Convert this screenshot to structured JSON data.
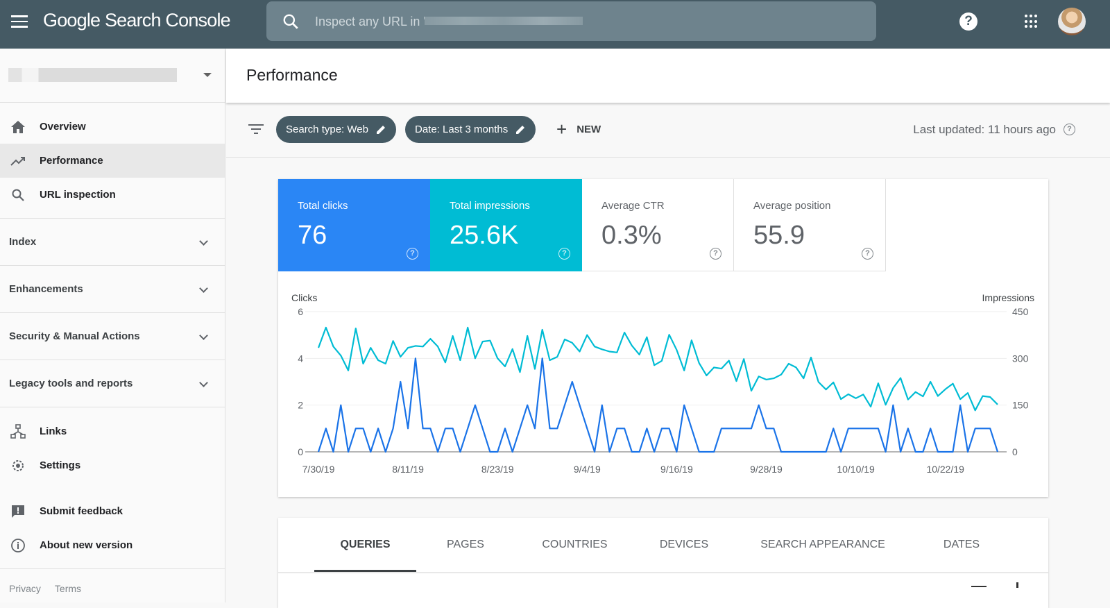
{
  "app": {
    "title": "Google Search Console",
    "search_placeholder": "Inspect any URL in '"
  },
  "icons": {
    "menu": "hamburger-icon",
    "search": "search-icon",
    "help": "help-circle-icon",
    "apps": "apps-grid-icon",
    "avatar": "user-avatar"
  },
  "header": {
    "title": "Performance"
  },
  "sidebar": {
    "items": [
      {
        "label": "Overview",
        "icon": "home-icon"
      },
      {
        "label": "Performance",
        "icon": "trending-up-icon",
        "active": true
      },
      {
        "label": "URL inspection",
        "icon": "search-icon"
      }
    ],
    "sections": [
      {
        "label": "Index"
      },
      {
        "label": "Enhancements"
      },
      {
        "label": "Security & Manual Actions"
      },
      {
        "label": "Legacy tools and reports"
      }
    ],
    "bottom": [
      {
        "label": "Links",
        "icon": "sitemap-icon"
      },
      {
        "label": "Settings",
        "icon": "gear-icon"
      },
      {
        "label": "Submit feedback",
        "icon": "feedback-icon"
      },
      {
        "label": "About new version",
        "icon": "info-icon"
      }
    ],
    "footer": {
      "privacy": "Privacy",
      "terms": "Terms"
    }
  },
  "filters": {
    "search_type": "Search type: Web",
    "date": "Date: Last 3 months",
    "new": "NEW",
    "last_updated": "Last updated: 11 hours ago"
  },
  "metrics": [
    {
      "label": "Total clicks",
      "value": "76",
      "color": "#2a86f5",
      "selected": true
    },
    {
      "label": "Total impressions",
      "value": "25.6K",
      "color": "#00bcd4",
      "selected": true
    },
    {
      "label": "Average CTR",
      "value": "0.3%",
      "selected": false
    },
    {
      "label": "Average position",
      "value": "55.9",
      "selected": false
    }
  ],
  "tabs": [
    {
      "label": "QUERIES",
      "active": true
    },
    {
      "label": "PAGES"
    },
    {
      "label": "COUNTRIES"
    },
    {
      "label": "DEVICES"
    },
    {
      "label": "SEARCH APPEARANCE"
    },
    {
      "label": "DATES"
    }
  ],
  "chart_data": {
    "type": "line",
    "start_date": "7/30/19",
    "x_ticks": [
      "7/30/19",
      "8/11/19",
      "8/23/19",
      "9/4/19",
      "9/16/19",
      "9/28/19",
      "10/10/19",
      "10/22/19"
    ],
    "y_left": {
      "label": "Clicks",
      "ticks": [
        0,
        2,
        4,
        6
      ],
      "range": [
        0,
        6
      ]
    },
    "y_right": {
      "label": "Impressions",
      "ticks": [
        0,
        150,
        300,
        450
      ],
      "range": [
        0,
        450
      ]
    },
    "grid": true,
    "series": [
      {
        "name": "Clicks",
        "axis": "left",
        "color": "#1a73e8",
        "values": [
          0,
          1,
          0,
          2,
          0,
          1,
          1,
          0,
          1,
          0,
          1,
          3,
          1,
          4,
          1,
          1,
          0,
          1,
          1,
          0,
          1,
          2,
          1,
          0,
          0,
          1,
          0,
          1,
          2,
          1,
          4,
          1,
          1,
          2,
          3,
          2,
          1,
          0,
          2,
          0,
          1,
          1,
          0,
          0,
          1,
          0,
          1,
          1,
          0,
          2,
          1,
          0,
          0,
          0,
          1,
          1,
          1,
          1,
          1,
          2,
          1,
          1,
          0,
          0,
          0,
          0,
          0,
          0,
          0,
          1,
          0,
          1,
          1,
          1,
          1,
          1,
          0,
          2,
          0,
          1,
          0,
          0,
          1,
          0,
          0,
          0,
          2,
          0,
          1,
          1,
          1,
          0
        ]
      },
      {
        "name": "Impressions",
        "axis": "right",
        "color": "#00bcd4",
        "values": [
          334,
          399,
          338,
          309,
          261,
          396,
          283,
          334,
          294,
          283,
          356,
          305,
          334,
          340,
          338,
          363,
          338,
          287,
          372,
          294,
          399,
          300,
          354,
          357,
          300,
          274,
          330,
          256,
          372,
          266,
          392,
          294,
          305,
          361,
          350,
          322,
          375,
          338,
          329,
          322,
          319,
          383,
          341,
          312,
          368,
          278,
          292,
          376,
          327,
          261,
          358,
          285,
          245,
          271,
          267,
          293,
          227,
          298,
          196,
          242,
          232,
          236,
          248,
          283,
          271,
          236,
          303,
          224,
          200,
          223,
          169,
          185,
          172,
          184,
          145,
          220,
          151,
          205,
          237,
          168,
          192,
          178,
          225,
          179,
          201,
          219,
          169,
          189,
          133,
          179,
          176,
          152
        ]
      }
    ]
  }
}
